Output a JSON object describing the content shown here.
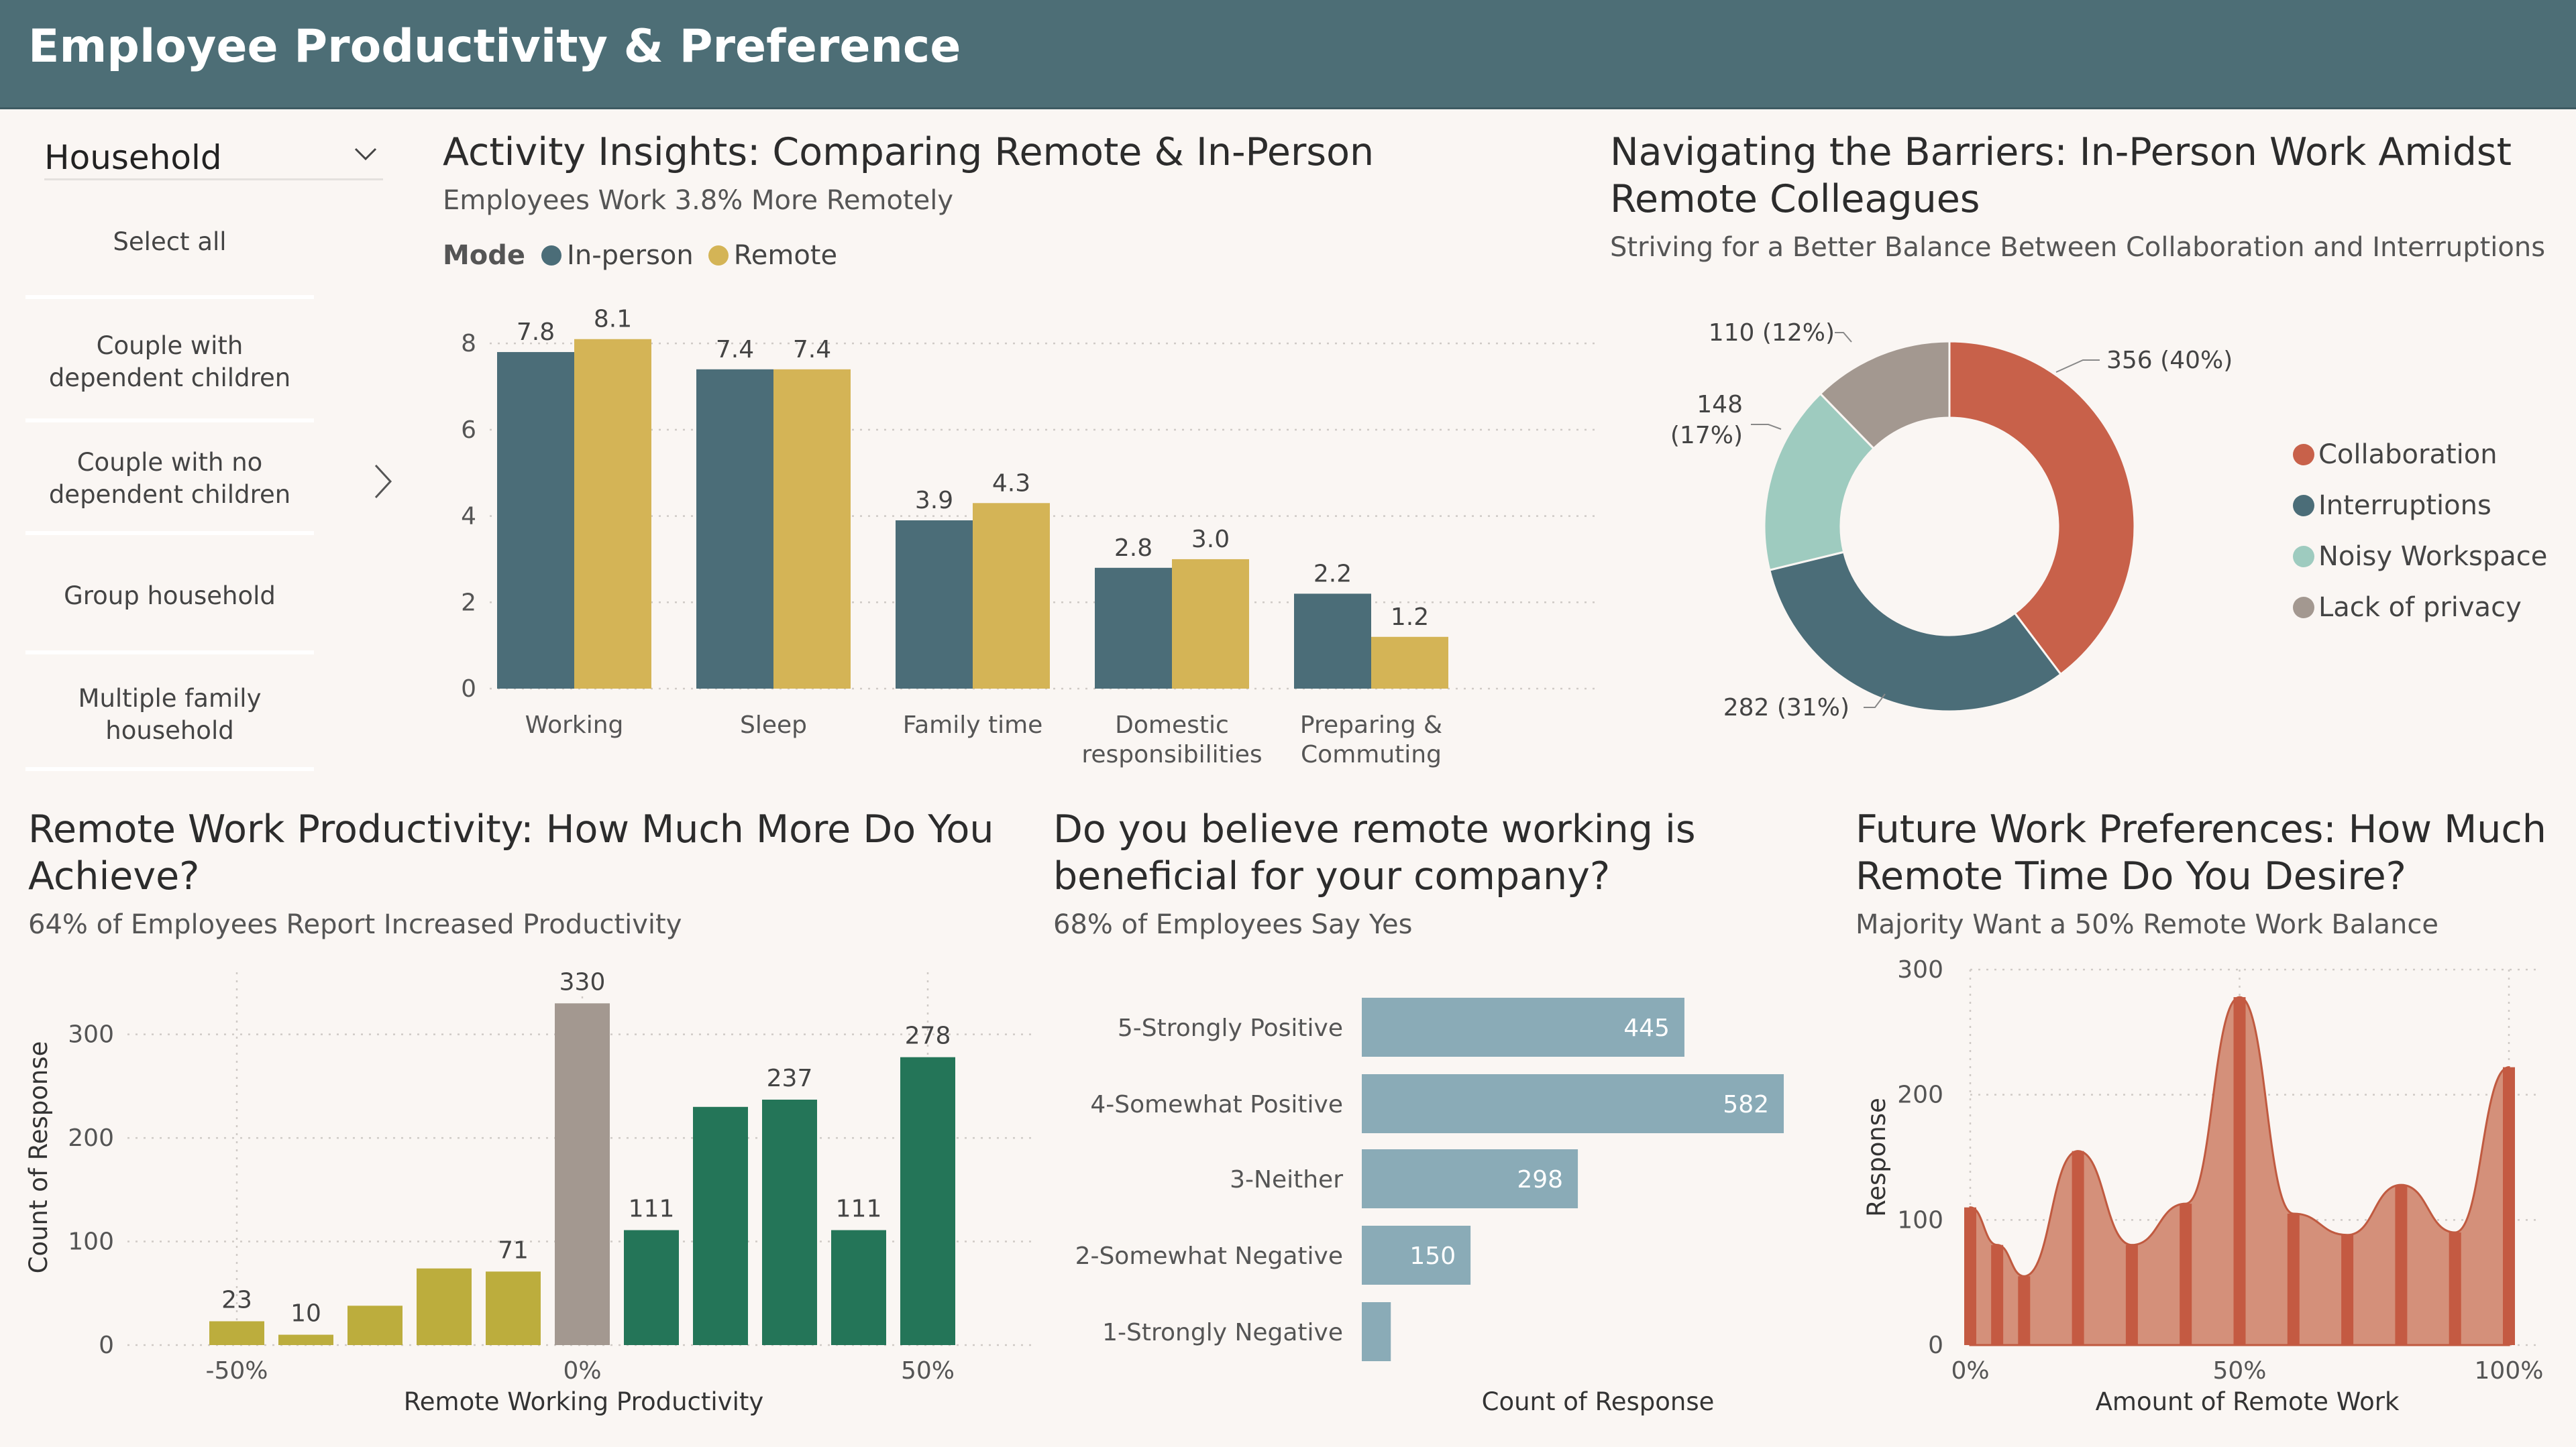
{
  "header": {
    "title": "Employee Productivity & Preference"
  },
  "slicer": {
    "title": "Household",
    "items": [
      "Select all",
      "Couple with\ndependent children",
      "Couple with no\ndependent children",
      "Group household",
      "Multiple family\nhousehold"
    ]
  },
  "activity": {
    "title": "Activity Insights: Comparing Remote & In-Person",
    "subtitle": "Employees Work 3.8% More Remotely",
    "legend_label": "Mode",
    "colors": {
      "inperson": "#4b6d78",
      "remote": "#d4b456"
    }
  },
  "barriers": {
    "title_line1": "Navigating the Barriers: In-Person Work Amidst",
    "title_line2": "Remote Colleagues",
    "subtitle": "Striving for a Better Balance Between Collaboration and Interruptions"
  },
  "productivity": {
    "title_line1": "Remote Work Productivity: How Much More Do You",
    "title_line2": "Achieve?",
    "subtitle": "64% of Employees Report Increased Productivity"
  },
  "beneficial": {
    "title_line1": "Do you believe remote working is",
    "title_line2": "beneficial for your company?",
    "subtitle": "68% of Employees Say Yes"
  },
  "future": {
    "title_line1": "Future Work Preferences: How Much",
    "title_line2": "Remote Time Do You Desire?",
    "subtitle": "Majority Want a 50% Remote Work Balance"
  },
  "chart_data": [
    {
      "type": "bar",
      "categories": [
        "Working",
        "Sleep",
        "Family time",
        "Domestic\nresponsibilities",
        "Preparing &\nCommuting"
      ],
      "series": [
        {
          "name": "In-person",
          "values": [
            7.8,
            7.4,
            3.9,
            2.8,
            2.2
          ]
        },
        {
          "name": "Remote",
          "values": [
            8.1,
            7.4,
            4.3,
            3.0,
            1.2
          ]
        }
      ],
      "yticks": [
        0,
        2,
        4,
        6,
        8
      ],
      "ylim": [
        0,
        8.5
      ],
      "grid": true,
      "legend": "top-left"
    },
    {
      "type": "pie",
      "labels": [
        "Collaboration",
        "Interruptions",
        "Noisy Workspace",
        "Lack of privacy"
      ],
      "values": [
        356,
        282,
        148,
        110
      ],
      "data_labels": [
        "356 (40%)",
        "282 (31%)",
        "148\n(17%)",
        "110 (12%)"
      ],
      "colors": [
        "#c8614a",
        "#4b6d78",
        "#9ecbbf",
        "#a39890"
      ],
      "legend": "right"
    },
    {
      "type": "bar",
      "xlabel": "Remote Working Productivity",
      "ylabel": "Count of Response",
      "x": [
        -50,
        -40,
        -30,
        -20,
        -10,
        0,
        10,
        20,
        30,
        40,
        50
      ],
      "values": [
        23,
        10,
        38,
        74,
        71,
        330,
        111,
        230,
        237,
        111,
        278
      ],
      "data_labels": [
        "23",
        "10",
        "",
        "",
        "71",
        "330",
        "111",
        "",
        "237",
        "111",
        "278"
      ],
      "xticks": [
        "-50%",
        "0%",
        "50%"
      ],
      "yticks": [
        0,
        100,
        200,
        300
      ],
      "ylim": [
        0,
        360
      ],
      "colors": {
        "negative": "#bcad3d",
        "neutral": "#a39890",
        "positive": "#247558"
      }
    },
    {
      "type": "bar",
      "orientation": "horizontal",
      "xlabel": "Count of Response",
      "categories": [
        "5-Strongly Positive",
        "4-Somewhat Positive",
        "3-Neither",
        "2-Somewhat Negative",
        "1-Strongly Negative"
      ],
      "values": [
        445,
        582,
        298,
        150,
        40
      ],
      "data_labels": [
        "445",
        "582",
        "298",
        "150",
        ""
      ],
      "colors": {
        "bar": "#8aabb7"
      }
    },
    {
      "type": "area",
      "xlabel": "Amount of Remote Work",
      "ylabel": "Response",
      "x": [
        0,
        5,
        10,
        20,
        30,
        40,
        50,
        60,
        70,
        80,
        90,
        100
      ],
      "values": [
        110,
        80,
        55,
        155,
        80,
        113,
        278,
        105,
        88,
        128,
        90,
        222
      ],
      "xticks": [
        "0%",
        "50%",
        "100%"
      ],
      "yticks": [
        0,
        100,
        200,
        300
      ],
      "ylim": [
        0,
        300
      ],
      "colors": {
        "fill": "#d4907a",
        "stroke": "#c05a40",
        "bar": "#c45a42"
      }
    }
  ]
}
